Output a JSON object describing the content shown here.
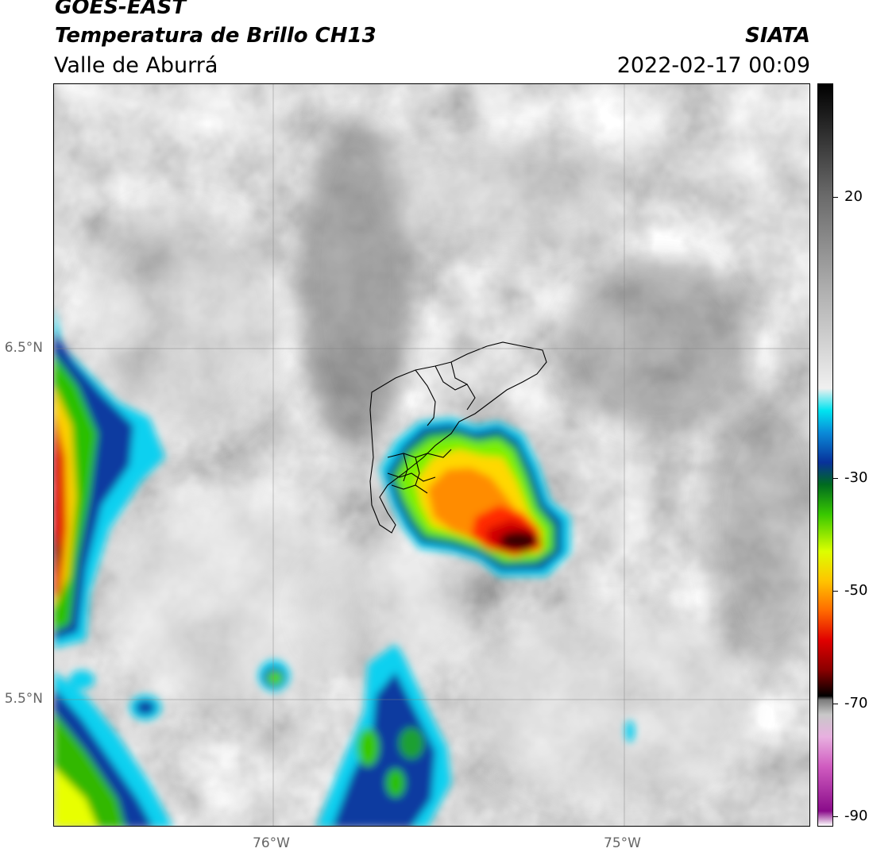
{
  "header": {
    "satellite": "GOES-EAST",
    "product": "Temperatura de Brillo CH13",
    "region": "Valle de Aburrá",
    "agency": "SIATA",
    "timestamp": "2022-02-17 00:09"
  },
  "map": {
    "lat_labels": [
      "6.5°N",
      "5.5°N"
    ],
    "lon_labels": [
      "76°W",
      "75°W"
    ]
  },
  "colorbar": {
    "tick_labels": [
      "20",
      "-30",
      "-50",
      "-70",
      "-90"
    ],
    "colors": [
      "#ffffff",
      "#8a0c8a",
      "#d05cc0",
      "#e8b0e0",
      "#c8c8c8",
      "#7a7a7a",
      "#000000",
      "#8a0000",
      "#e00000",
      "#ff6a00",
      "#ffc400",
      "#dcff00",
      "#38c800",
      "#006b1f",
      "#08319a",
      "#0a8ad8",
      "#00e4f0",
      "#f0f0f0",
      "#b0b0b0",
      "#6a6a6a",
      "#000000"
    ]
  }
}
